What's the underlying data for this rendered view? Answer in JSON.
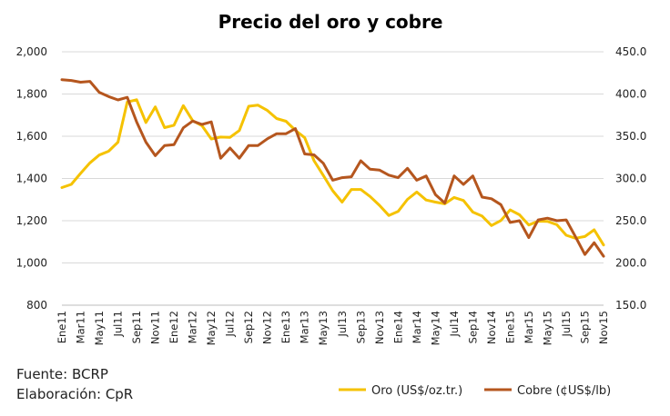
{
  "chart_data": {
    "type": "line",
    "title": "Precio del oro y cobre",
    "categories": [
      "Ene11",
      "Feb11",
      "Mar11",
      "Abr11",
      "May11",
      "Jun11",
      "Jul11",
      "Ago11",
      "Sep11",
      "Oct11",
      "Nov11",
      "Dic11",
      "Ene12",
      "Feb12",
      "Mar12",
      "Abr12",
      "May12",
      "Jun12",
      "Jul12",
      "Ago12",
      "Sep12",
      "Oct12",
      "Nov12",
      "Dic12",
      "Ene13",
      "Feb13",
      "Mar13",
      "Abr13",
      "May13",
      "Jun13",
      "Jul13",
      "Ago13",
      "Sep13",
      "Oct13",
      "Nov13",
      "Dic13",
      "Ene14",
      "Feb14",
      "Mar14",
      "Abr14",
      "May14",
      "Jun14",
      "Jul14",
      "Ago14",
      "Sep14",
      "Oct14",
      "Nov14",
      "Dic14",
      "Ene15",
      "Feb15",
      "Mar15",
      "Abr15",
      "May15",
      "Jun15",
      "Jul15",
      "Ago15",
      "Sep15",
      "Oct15",
      "Nov15"
    ],
    "x_tick_labels": [
      "Ene11",
      "Mar11",
      "May11",
      "Jul11",
      "Sep11",
      "Nov11",
      "Ene12",
      "Mar12",
      "May12",
      "Jul12",
      "Sep12",
      "Nov12",
      "Ene13",
      "Mar13",
      "May13",
      "Jul13",
      "Sep13",
      "Nov13",
      "Ene14",
      "Mar14",
      "May14",
      "Jul14",
      "Sep14",
      "Nov14",
      "Ene15",
      "Mar15",
      "May15",
      "Jul15",
      "Sep15",
      "Nov15"
    ],
    "y_left": {
      "lim": [
        800,
        2000
      ],
      "ticks": [
        "800",
        "1,000",
        "1,200",
        "1,400",
        "1,600",
        "1,800",
        "2,000"
      ]
    },
    "y_right": {
      "lim": [
        150,
        450
      ],
      "ticks": [
        "150.0",
        "200.0",
        "250.0",
        "300.0",
        "350.0",
        "400.0",
        "450.0"
      ]
    },
    "grid": true,
    "legend_position": "bottom-right",
    "series": [
      {
        "name": "Oro (US$/oz.tr.)",
        "axis": "left",
        "color": "#F5C200",
        "values": [
          1357,
          1372,
          1424,
          1474,
          1511,
          1529,
          1572,
          1762,
          1773,
          1665,
          1739,
          1641,
          1652,
          1745,
          1674,
          1650,
          1587,
          1596,
          1595,
          1627,
          1742,
          1747,
          1722,
          1684,
          1671,
          1628,
          1593,
          1484,
          1414,
          1342,
          1288,
          1348,
          1348,
          1315,
          1273,
          1225,
          1244,
          1301,
          1336,
          1298,
          1288,
          1280,
          1310,
          1296,
          1241,
          1222,
          1177,
          1201,
          1251,
          1228,
          1180,
          1198,
          1197,
          1181,
          1131,
          1117,
          1125,
          1157,
          1085
        ]
      },
      {
        "name": "Cobre (¢US$/lb)",
        "axis": "right",
        "color": "#B5561E",
        "values": [
          417,
          416,
          414,
          415,
          402,
          397,
          393,
          396,
          367,
          343,
          327,
          339,
          340,
          360,
          368,
          364,
          367,
          324,
          336,
          324,
          339,
          339,
          347,
          353,
          353,
          359,
          329,
          328,
          318,
          298,
          301,
          302,
          321,
          311,
          310,
          304,
          301,
          312,
          298,
          303,
          281,
          271,
          303,
          293,
          303,
          278,
          276,
          269,
          248,
          250,
          230,
          251,
          253,
          250,
          251,
          231,
          210,
          224,
          208
        ]
      }
    ],
    "footer": {
      "source": "Fuente: BCRP",
      "elaboration": "Elaboración: CpR"
    }
  }
}
